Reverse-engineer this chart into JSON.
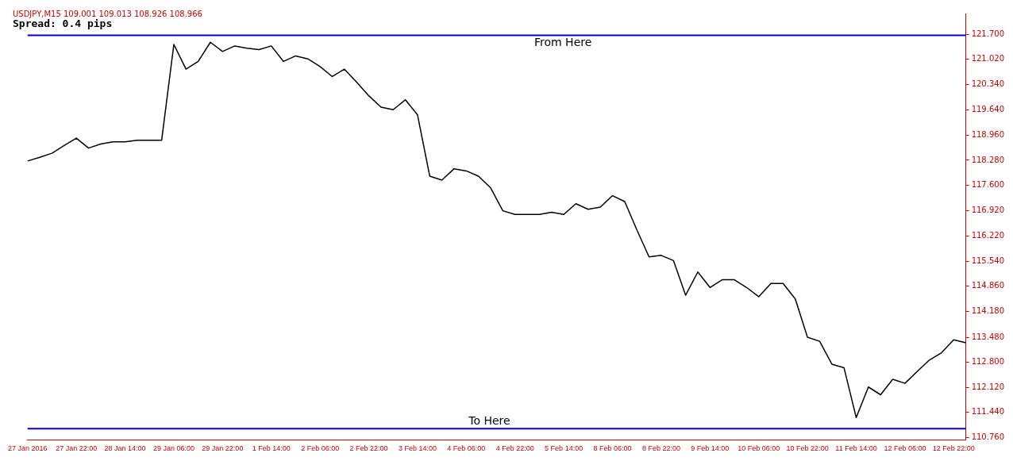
{
  "chart_data": {
    "type": "line",
    "title": "USDJPY,M15  109.001 109.013 108.926 108.966",
    "subtitle": "Spread: 0.4 pips",
    "categories": [
      "27 Jan 2016",
      null,
      null,
      null,
      "27 Jan 22:00",
      null,
      null,
      null,
      "28 Jan 14:00",
      null,
      null,
      null,
      "29 Jan 06:00",
      null,
      null,
      null,
      "29 Jan 22:00",
      null,
      null,
      null,
      "1 Feb 14:00",
      null,
      null,
      null,
      "2 Feb 06:00",
      null,
      null,
      null,
      "2 Feb 22:00",
      null,
      null,
      null,
      "3 Feb 14:00",
      null,
      null,
      null,
      "4 Feb 06:00",
      null,
      null,
      null,
      "4 Feb 22:00",
      null,
      null,
      null,
      "5 Feb 14:00",
      null,
      null,
      null,
      "8 Feb 06:00",
      null,
      null,
      null,
      "8 Feb 22:00",
      null,
      null,
      null,
      "9 Feb 14:00",
      null,
      null,
      null,
      "10 Feb 06:00",
      null,
      null,
      null,
      "10 Feb 22:00",
      null,
      null,
      null,
      "11 Feb 14:00",
      null,
      null,
      null,
      "12 Feb 06:00",
      null,
      null,
      null,
      "12 Feb 22:00",
      null
    ],
    "series": [
      {
        "color": "#000000",
        "values": [
          118.26,
          118.36,
          118.47,
          118.68,
          118.88,
          118.61,
          118.72,
          118.78,
          118.78,
          118.82,
          118.82,
          118.82,
          121.42,
          120.75,
          120.96,
          121.48,
          121.23,
          121.38,
          121.32,
          121.28,
          121.38,
          120.96,
          121.11,
          121.03,
          120.82,
          120.55,
          120.75,
          120.4,
          120.03,
          119.72,
          119.65,
          119.92,
          119.51,
          117.85,
          117.74,
          118.05,
          117.99,
          117.85,
          117.53,
          116.91,
          116.81,
          116.81,
          116.81,
          116.87,
          116.81,
          117.1,
          116.95,
          117.01,
          117.32,
          117.16,
          116.39,
          115.66,
          115.7,
          115.56,
          114.62,
          115.25,
          114.83,
          115.04,
          115.04,
          114.83,
          114.58,
          114.94,
          114.94,
          114.52,
          113.48,
          113.37,
          112.75,
          112.65,
          111.3,
          112.13,
          111.92,
          112.34,
          112.23,
          112.55,
          112.86,
          113.06,
          113.41,
          113.33
        ]
      }
    ],
    "ylim": [
      110.7,
      122.26
    ],
    "yticks": [
      {
        "value": 121.7,
        "label": "121.700"
      },
      {
        "value": 121.02,
        "label": "121.020"
      },
      {
        "value": 120.34,
        "label": "120.340"
      },
      {
        "value": 119.64,
        "label": "119.640"
      },
      {
        "value": 118.96,
        "label": "118.960"
      },
      {
        "value": 118.28,
        "label": "118.280"
      },
      {
        "value": 117.6,
        "label": "117.600"
      },
      {
        "value": 116.92,
        "label": "116.920"
      },
      {
        "value": 116.22,
        "label": "116.220"
      },
      {
        "value": 115.54,
        "label": "115.540"
      },
      {
        "value": 114.86,
        "label": "114.860"
      },
      {
        "value": 114.18,
        "label": "114.180"
      },
      {
        "value": 113.48,
        "label": "113.480"
      },
      {
        "value": 112.8,
        "label": "112.800"
      },
      {
        "value": 112.12,
        "label": "112.120"
      },
      {
        "value": 111.44,
        "label": "111.440"
      },
      {
        "value": 110.76,
        "label": "110.760"
      }
    ],
    "ref_lines": [
      {
        "axis": "y",
        "value": 121.67,
        "label": "From Here",
        "color": "#0000cc"
      },
      {
        "axis": "y",
        "value": 111.0,
        "label": "To Here",
        "color": "#0000cc"
      }
    ],
    "grid": false,
    "legend": false,
    "marker": "none",
    "line_style": "solid"
  }
}
